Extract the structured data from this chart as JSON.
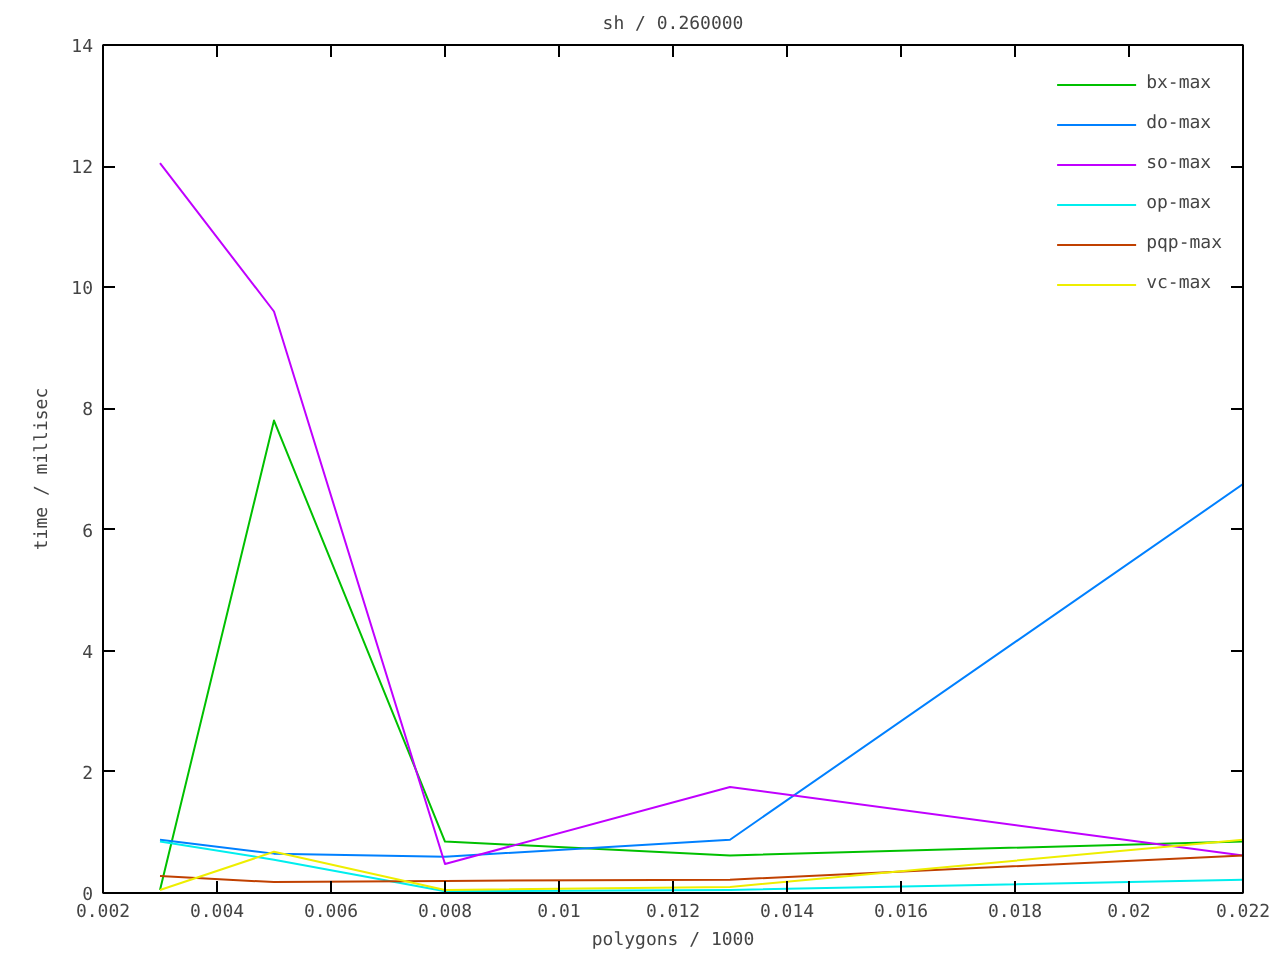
{
  "chart_data": {
    "type": "line",
    "title": "sh / 0.260000",
    "xlabel": "polygons / 1000",
    "ylabel": "time / millisec",
    "x": [
      0.003,
      0.005,
      0.008,
      0.013,
      0.022
    ],
    "series": [
      {
        "name": "bx-max",
        "color": "#00c000",
        "values": [
          0.05,
          7.8,
          0.85,
          0.62,
          0.85
        ]
      },
      {
        "name": "do-max",
        "color": "#0080ff",
        "values": [
          0.88,
          0.65,
          0.6,
          0.88,
          6.75
        ]
      },
      {
        "name": "so-max",
        "color": "#c000ff",
        "values": [
          12.05,
          9.6,
          0.48,
          1.75,
          0.62
        ]
      },
      {
        "name": "op-max",
        "color": "#00eeee",
        "values": [
          0.85,
          0.55,
          0.03,
          0.05,
          0.22
        ]
      },
      {
        "name": "pqp-max",
        "color": "#c04000",
        "values": [
          0.28,
          0.18,
          0.2,
          0.22,
          0.62
        ]
      },
      {
        "name": "vc-max",
        "color": "#eeee00",
        "values": [
          0.05,
          0.68,
          0.05,
          0.1,
          0.88
        ]
      }
    ],
    "xlim": [
      0.002,
      0.022
    ],
    "xticks": [
      0.002,
      0.004,
      0.006,
      0.008,
      0.01,
      0.012,
      0.014,
      0.016,
      0.018,
      0.02,
      0.022
    ],
    "ylim": [
      0,
      14
    ],
    "yticks": [
      0,
      2,
      4,
      6,
      8,
      10,
      12,
      14
    ],
    "grid": false,
    "legend": "top right",
    "marker": "none",
    "line_style": "solid"
  }
}
